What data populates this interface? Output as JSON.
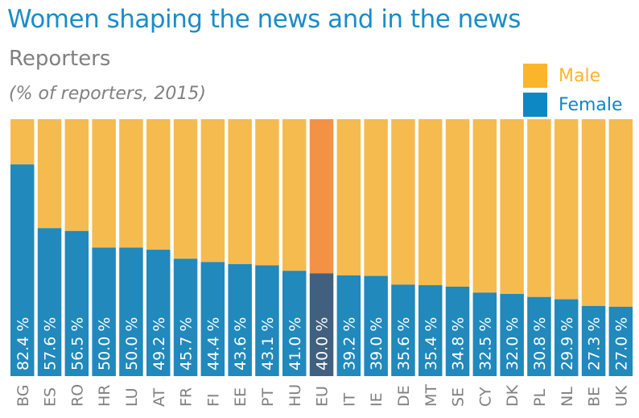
{
  "title": "Women shaping the news and in the news",
  "subtitle": "Reporters",
  "note": "(% of reporters, 2015)",
  "colors": {
    "female": "#2189bb",
    "male": "#f5bb4f",
    "eu_female": "#41607f",
    "eu_male": "#f39244",
    "legend_male": "#fbb52a",
    "legend_female": "#0e87c5",
    "title": "#1a8cc8",
    "axis_text": "#808080"
  },
  "chart_data": {
    "type": "bar",
    "stacked": true,
    "categories": [
      "BG",
      "ES",
      "RO",
      "HR",
      "LU",
      "AT",
      "FR",
      "FI",
      "EE",
      "PT",
      "HU",
      "EU",
      "IT",
      "IE",
      "DE",
      "MT",
      "SE",
      "CY",
      "DK",
      "PL",
      "NL",
      "BE",
      "UK"
    ],
    "series": [
      {
        "name": "Female",
        "values": [
          82.4,
          57.6,
          56.5,
          50.0,
          50.0,
          49.2,
          45.7,
          44.4,
          43.6,
          43.1,
          41.0,
          40.0,
          39.2,
          39.0,
          35.6,
          35.4,
          34.8,
          32.5,
          32.0,
          30.8,
          29.9,
          27.3,
          27.0
        ]
      },
      {
        "name": "Male",
        "values": [
          17.6,
          42.4,
          43.5,
          50.0,
          50.0,
          50.8,
          54.3,
          55.6,
          56.4,
          56.9,
          59.0,
          60.0,
          60.8,
          61.0,
          64.4,
          64.6,
          65.2,
          67.5,
          68.0,
          69.2,
          70.1,
          72.7,
          73.0
        ]
      }
    ],
    "data_labels": [
      "82.4 %",
      "57.6 %",
      "56.5 %",
      "50.0 %",
      "50.0 %",
      "49.2 %",
      "45.7 %",
      "44.4 %",
      "43.6 %",
      "43.1 %",
      "41.0 %",
      "40.0 %",
      "39.2 %",
      "39.0 %",
      "35.6 %",
      "35.4 %",
      "34.8 %",
      "32.5 %",
      "32.0 %",
      "30.8 %",
      "29.9 %",
      "27.3 %",
      "27.0 %"
    ],
    "highlight": "EU",
    "ylim": [
      0,
      100
    ],
    "grid": false,
    "legend_position": "top-right"
  },
  "legend": [
    {
      "label": "Male"
    },
    {
      "label": "Female"
    }
  ]
}
